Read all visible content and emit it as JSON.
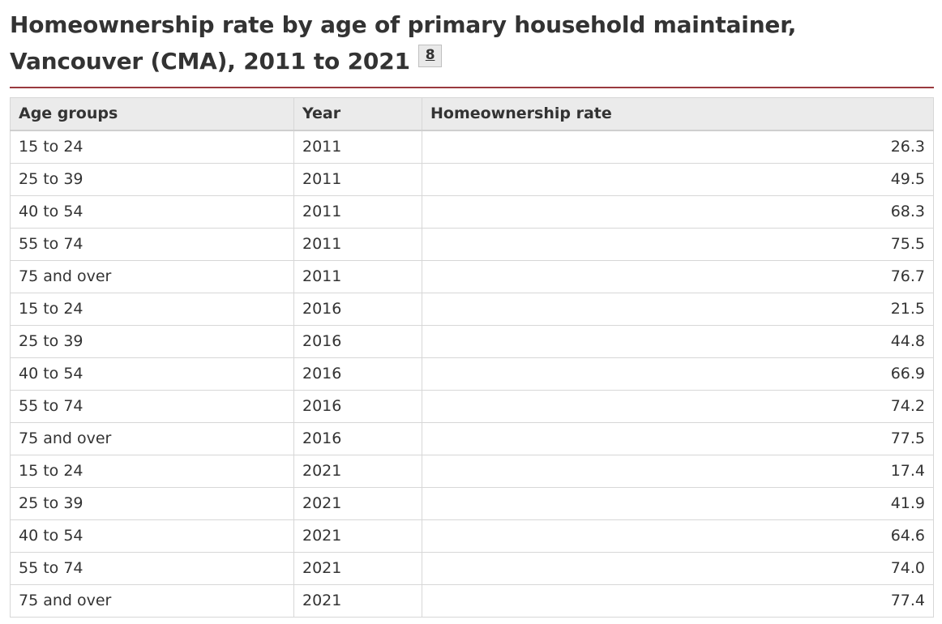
{
  "title": {
    "line1": "Homeownership rate by age of primary household maintainer,",
    "line2": "Vancouver (CMA), 2011 to 2021",
    "footnote_ref": "8"
  },
  "colors": {
    "accent_rule": "#9a3a3e",
    "header_background": "#ebebeb",
    "table_border": "#d7d7d7",
    "text": "#333333",
    "footnote_box_background": "#e9e9e9",
    "footnote_box_border": "#bfbfbf"
  },
  "table": {
    "headers": [
      "Age groups",
      "Year",
      "Homeownership rate"
    ],
    "rows": [
      {
        "age_group": "15 to 24",
        "year": "2011",
        "rate": "26.3"
      },
      {
        "age_group": "25 to 39",
        "year": "2011",
        "rate": "49.5"
      },
      {
        "age_group": "40 to 54",
        "year": "2011",
        "rate": "68.3"
      },
      {
        "age_group": "55 to 74",
        "year": "2011",
        "rate": "75.5"
      },
      {
        "age_group": "75 and over",
        "year": "2011",
        "rate": "76.7"
      },
      {
        "age_group": "15 to 24",
        "year": "2016",
        "rate": "21.5"
      },
      {
        "age_group": "25 to 39",
        "year": "2016",
        "rate": "44.8"
      },
      {
        "age_group": "40 to 54",
        "year": "2016",
        "rate": "66.9"
      },
      {
        "age_group": "55 to 74",
        "year": "2016",
        "rate": "74.2"
      },
      {
        "age_group": "75 and over",
        "year": "2016",
        "rate": "77.5"
      },
      {
        "age_group": "15 to 24",
        "year": "2021",
        "rate": "17.4"
      },
      {
        "age_group": "25 to 39",
        "year": "2021",
        "rate": "41.9"
      },
      {
        "age_group": "40 to 54",
        "year": "2021",
        "rate": "64.6"
      },
      {
        "age_group": "55 to 74",
        "year": "2021",
        "rate": "74.0"
      },
      {
        "age_group": "75 and over",
        "year": "2021",
        "rate": "77.4"
      }
    ]
  },
  "chart_data": {
    "type": "table",
    "title": "Homeownership rate by age of primary household maintainer, Vancouver (CMA), 2011 to 2021",
    "columns": [
      "Age groups",
      "Year",
      "Homeownership rate"
    ],
    "age_groups": [
      "15 to 24",
      "25 to 39",
      "40 to 54",
      "55 to 74",
      "75 and over"
    ],
    "years": [
      "2011",
      "2016",
      "2021"
    ],
    "series": [
      {
        "name": "2011",
        "values": [
          26.3,
          49.5,
          68.3,
          75.5,
          76.7
        ]
      },
      {
        "name": "2016",
        "values": [
          21.5,
          44.8,
          66.9,
          74.2,
          77.5
        ]
      },
      {
        "name": "2021",
        "values": [
          17.4,
          41.9,
          64.6,
          74.0,
          77.4
        ]
      }
    ]
  }
}
